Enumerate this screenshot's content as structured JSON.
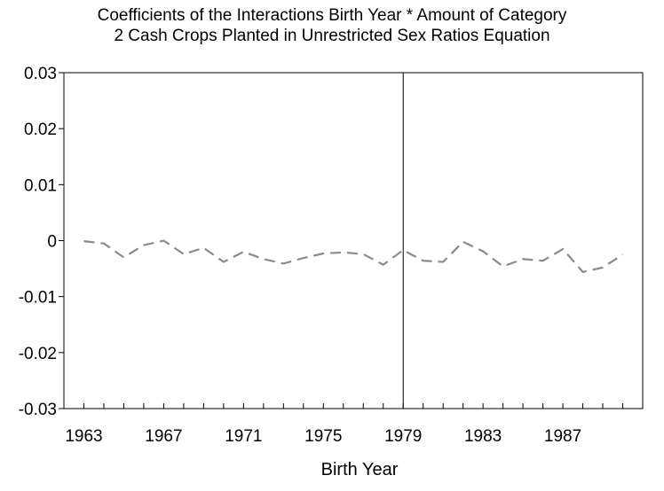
{
  "chart_data": {
    "type": "line",
    "title_line1": "Coefficients of the Interactions Birth Year * Amount of Category",
    "title_line2": "2 Cash Crops Planted in Unrestricted Sex Ratios Equation",
    "xlabel": "Birth Year",
    "ylabel": "",
    "xlim": [
      1962,
      1991
    ],
    "ylim": [
      -0.03,
      0.03
    ],
    "x_tick_labels": [
      1963,
      1967,
      1971,
      1975,
      1979,
      1983,
      1987
    ],
    "y_tick_labels": [
      "0.03",
      "0.02",
      "0.01",
      "0",
      "-0.01",
      "-0.02",
      "-0.03"
    ],
    "y_tick_values": [
      0.03,
      0.02,
      0.01,
      0,
      -0.01,
      -0.02,
      -0.03
    ],
    "reference_line_x": 1979,
    "grid": false,
    "legend": "none",
    "series": [
      {
        "color": "#8a8a8a",
        "style": "dashed",
        "x": [
          1963,
          1964,
          1965,
          1966,
          1967,
          1968,
          1969,
          1970,
          1971,
          1972,
          1973,
          1974,
          1975,
          1976,
          1977,
          1978,
          1979,
          1980,
          1981,
          1982,
          1983,
          1984,
          1985,
          1986,
          1987,
          1988,
          1989,
          1990
        ],
        "y": [
          -0.0001,
          -0.0005,
          -0.003,
          -0.0008,
          0.0,
          -0.0024,
          -0.0013,
          -0.0038,
          -0.002,
          -0.0033,
          -0.0041,
          -0.0031,
          -0.0023,
          -0.0021,
          -0.0024,
          -0.0043,
          -0.0017,
          -0.0036,
          -0.0038,
          -0.0002,
          -0.0019,
          -0.0046,
          -0.0033,
          -0.0036,
          -0.0015,
          -0.0056,
          -0.0048,
          -0.0025
        ]
      }
    ]
  }
}
